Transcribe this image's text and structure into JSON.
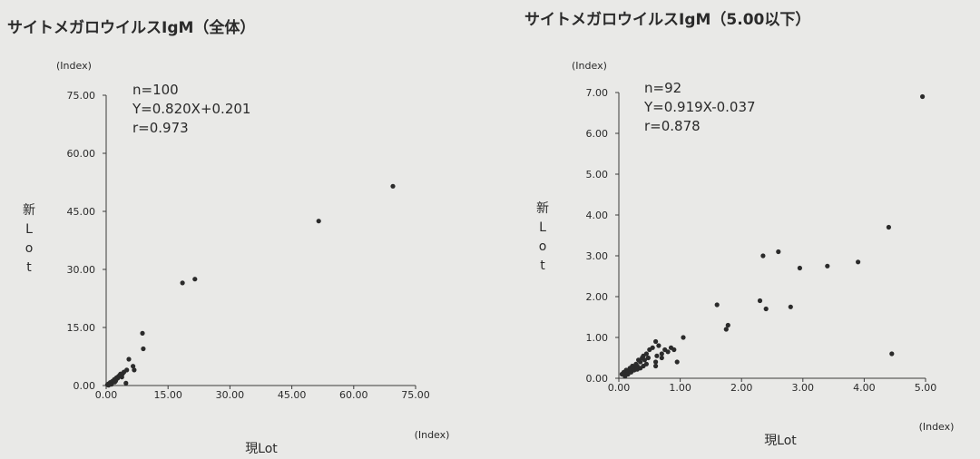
{
  "chart_data": [
    {
      "type": "scatter",
      "title": "サイトメガロウイルスIgM（全体）",
      "unit_top": "(Index)",
      "unit_right": "(Index)",
      "xlabel": "現Lot",
      "ylabel": "新Lot",
      "ylabel_chars": [
        "新",
        "L",
        "o",
        "t"
      ],
      "xlim": [
        0,
        75
      ],
      "ylim": [
        0,
        75
      ],
      "x_ticks": [
        "0.00",
        "15.00",
        "30.00",
        "45.00",
        "60.00",
        "75.00"
      ],
      "y_ticks": [
        "0.00",
        "15.00",
        "30.00",
        "45.00",
        "60.00",
        "75.00"
      ],
      "stats": [
        "n=100",
        "Y=0.820X+0.201",
        "r=0.973"
      ],
      "points": [
        [
          0.3,
          0.2
        ],
        [
          0.5,
          0.4
        ],
        [
          0.7,
          0.5
        ],
        [
          1.0,
          0.8
        ],
        [
          1.2,
          0.6
        ],
        [
          1.5,
          1.1
        ],
        [
          1.8,
          1.3
        ],
        [
          2.0,
          1.6
        ],
        [
          2.3,
          1.2
        ],
        [
          2.5,
          2.0
        ],
        [
          2.8,
          1.9
        ],
        [
          3.0,
          2.4
        ],
        [
          3.3,
          2.7
        ],
        [
          3.5,
          3.0
        ],
        [
          4.0,
          3.1
        ],
        [
          4.3,
          3.5
        ],
        [
          4.8,
          0.6
        ],
        [
          5.0,
          4.0
        ],
        [
          5.5,
          6.8
        ],
        [
          6.5,
          5.0
        ],
        [
          6.8,
          4.0
        ],
        [
          8.8,
          13.5
        ],
        [
          9.0,
          9.5
        ],
        [
          18.5,
          26.5
        ],
        [
          21.5,
          27.5
        ],
        [
          51.5,
          42.5
        ],
        [
          69.5,
          51.5
        ],
        [
          0.6,
          0.1
        ],
        [
          1.3,
          0.3
        ],
        [
          2.1,
          0.9
        ],
        [
          3.8,
          2.2
        ]
      ]
    },
    {
      "type": "scatter",
      "title": "サイトメガロウイルスIgM（5.00以下）",
      "unit_top": "(Index)",
      "unit_right": "(Index)",
      "xlabel": "現Lot",
      "ylabel": "新Lot",
      "ylabel_chars": [
        "新",
        "L",
        "o",
        "t"
      ],
      "xlim": [
        0,
        5
      ],
      "ylim": [
        0,
        7
      ],
      "x_ticks": [
        "0.00",
        "1.00",
        "2.00",
        "3.00",
        "4.00",
        "5.00"
      ],
      "y_ticks": [
        "0.00",
        "1.00",
        "2.00",
        "3.00",
        "4.00",
        "5.00",
        "6.00",
        "7.00"
      ],
      "stats": [
        "n=92",
        "Y=0.919X-0.037",
        "r=0.878"
      ],
      "points": [
        [
          0.05,
          0.1
        ],
        [
          0.08,
          0.15
        ],
        [
          0.1,
          0.12
        ],
        [
          0.12,
          0.2
        ],
        [
          0.15,
          0.18
        ],
        [
          0.18,
          0.25
        ],
        [
          0.2,
          0.2
        ],
        [
          0.22,
          0.3
        ],
        [
          0.25,
          0.28
        ],
        [
          0.28,
          0.35
        ],
        [
          0.3,
          0.3
        ],
        [
          0.32,
          0.45
        ],
        [
          0.35,
          0.4
        ],
        [
          0.38,
          0.5
        ],
        [
          0.4,
          0.55
        ],
        [
          0.42,
          0.45
        ],
        [
          0.45,
          0.6
        ],
        [
          0.48,
          0.5
        ],
        [
          0.5,
          0.7
        ],
        [
          0.55,
          0.75
        ],
        [
          0.6,
          0.9
        ],
        [
          0.6,
          0.4
        ],
        [
          0.62,
          0.55
        ],
        [
          0.65,
          0.8
        ],
        [
          0.7,
          0.6
        ],
        [
          0.75,
          0.7
        ],
        [
          0.8,
          0.65
        ],
        [
          0.85,
          0.75
        ],
        [
          0.9,
          0.7
        ],
        [
          0.95,
          0.4
        ],
        [
          1.05,
          1.0
        ],
        [
          1.6,
          1.8
        ],
        [
          1.75,
          1.2
        ],
        [
          1.78,
          1.3
        ],
        [
          2.3,
          1.9
        ],
        [
          2.35,
          3.0
        ],
        [
          2.4,
          1.7
        ],
        [
          2.6,
          3.1
        ],
        [
          2.8,
          1.75
        ],
        [
          2.95,
          2.7
        ],
        [
          3.4,
          2.75
        ],
        [
          3.9,
          2.85
        ],
        [
          4.4,
          3.7
        ],
        [
          4.45,
          0.6
        ],
        [
          4.95,
          6.9
        ],
        [
          0.1,
          0.05
        ],
        [
          0.15,
          0.1
        ],
        [
          0.2,
          0.15
        ],
        [
          0.25,
          0.2
        ],
        [
          0.3,
          0.22
        ],
        [
          0.35,
          0.25
        ],
        [
          0.4,
          0.3
        ],
        [
          0.45,
          0.35
        ],
        [
          0.6,
          0.3
        ],
        [
          0.7,
          0.5
        ]
      ]
    }
  ]
}
